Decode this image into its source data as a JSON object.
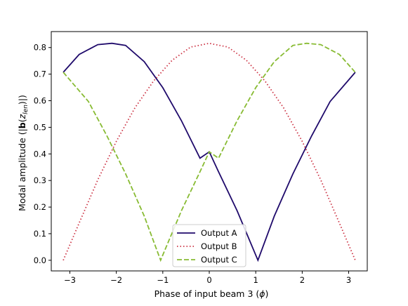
{
  "chart_data": {
    "type": "line",
    "xlabel": "Phase of input beam 3 (",
    "xlabel_symbol": "ϕ",
    "xlabel_close": ")",
    "ylabel_prefix": "Modal amplitude (|",
    "ylabel_bold": "b",
    "ylabel_open": "(",
    "ylabel_z": "z",
    "ylabel_sub": "len",
    "ylabel_suffix": ")|)",
    "xlim": [
      -3.4,
      3.4
    ],
    "ylim": [
      -0.04,
      0.86
    ],
    "xticks": [
      -3,
      -2,
      -1,
      0,
      1,
      2,
      3
    ],
    "xtick_labels": [
      "−3",
      "−2",
      "−1",
      "0",
      "1",
      "2",
      "3"
    ],
    "yticks": [
      0.0,
      0.1,
      0.2,
      0.3,
      0.4,
      0.5,
      0.6,
      0.7,
      0.8
    ],
    "ytick_labels": [
      "0.0",
      "0.1",
      "0.2",
      "0.3",
      "0.4",
      "0.5",
      "0.6",
      "0.7",
      "0.8"
    ],
    "grid": false,
    "legend_position": "lower-center",
    "series": [
      {
        "name": "Output A",
        "color": "#1f0a6b",
        "style": "solid",
        "x": [
          -3.1416,
          -2.8,
          -2.4,
          -2.0944,
          -1.8,
          -1.4,
          -1.0,
          -0.6,
          -0.2,
          0.0,
          0.2,
          0.6,
          1.0472,
          1.4,
          1.8,
          2.2,
          2.6,
          3.1416
        ],
        "y": [
          0.707,
          0.774,
          0.811,
          0.816,
          0.808,
          0.747,
          0.649,
          0.525,
          0.384,
          0.408,
          0.333,
          0.186,
          0.0,
          0.166,
          0.325,
          0.467,
          0.597,
          0.707
        ]
      },
      {
        "name": "Output B",
        "color": "#cc3344",
        "style": "dotted",
        "x": [
          -3.1416,
          -2.8,
          -2.4,
          -2.0,
          -1.6,
          -1.2,
          -0.8,
          -0.4,
          0.0,
          0.4,
          0.8,
          1.2,
          1.6,
          2.0,
          2.4,
          2.8,
          3.1416
        ],
        "y": [
          0.0,
          0.14,
          0.302,
          0.447,
          0.573,
          0.674,
          0.752,
          0.802,
          0.816,
          0.802,
          0.752,
          0.674,
          0.573,
          0.447,
          0.302,
          0.14,
          0.0
        ]
      },
      {
        "name": "Output C",
        "color": "#88bb33",
        "style": "dashed",
        "x": [
          -3.1416,
          -2.6,
          -2.2,
          -1.8,
          -1.4,
          -1.0472,
          -0.6,
          -0.2,
          0.0,
          0.2,
          0.6,
          1.0,
          1.4,
          1.8,
          2.0944,
          2.4,
          2.8,
          3.1416
        ],
        "y": [
          0.707,
          0.597,
          0.467,
          0.325,
          0.166,
          0.0,
          0.186,
          0.333,
          0.408,
          0.384,
          0.525,
          0.649,
          0.747,
          0.808,
          0.816,
          0.811,
          0.774,
          0.707
        ]
      }
    ]
  }
}
